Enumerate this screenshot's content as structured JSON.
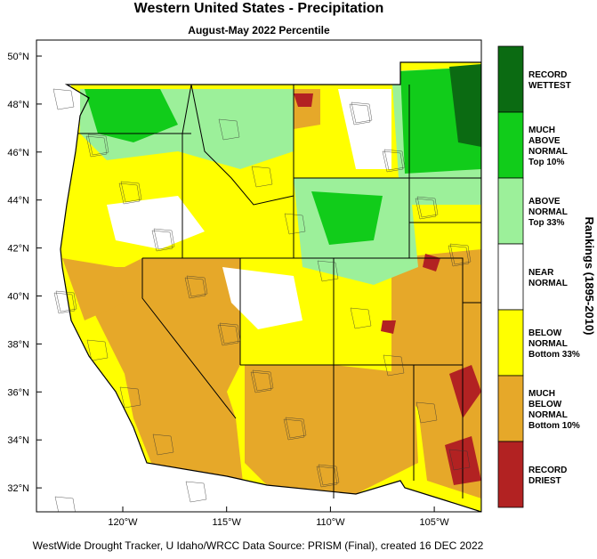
{
  "title": "Western United States - Precipitation",
  "subtitle": "August-May 2022 Percentile",
  "legend": {
    "title": "Rankings (1895-2010)",
    "items": [
      {
        "label": [
          "RECORD",
          "WETTEST"
        ],
        "color": "#0b6b12"
      },
      {
        "label": [
          "MUCH",
          "ABOVE",
          "NORMAL",
          "Top 10%"
        ],
        "color": "#11cc1a"
      },
      {
        "label": [
          "ABOVE",
          "NORMAL",
          "Top 33%"
        ],
        "color": "#9cf09a"
      },
      {
        "label": [
          "NEAR",
          "NORMAL"
        ],
        "color": "#ffffff"
      },
      {
        "label": [
          "BELOW",
          "NORMAL",
          "Bottom 33%"
        ],
        "color": "#ffff00"
      },
      {
        "label": [
          "MUCH",
          "BELOW",
          "NORMAL",
          "Bottom 10%"
        ],
        "color": "#e6a829"
      },
      {
        "label": [
          "RECORD",
          "DRIEST"
        ],
        "color": "#b22222"
      }
    ]
  },
  "lat_labels": [
    "50°N",
    "48°N",
    "46°N",
    "44°N",
    "42°N",
    "40°N",
    "38°N",
    "36°N",
    "34°N",
    "32°N"
  ],
  "lon_labels": [
    "120°W",
    "115°W",
    "110°W",
    "105°W"
  ],
  "footer": "WestWide Drought Tracker, U Idaho/WRCC Data Source: PRISM (Final), created 16 DEC 2022"
}
